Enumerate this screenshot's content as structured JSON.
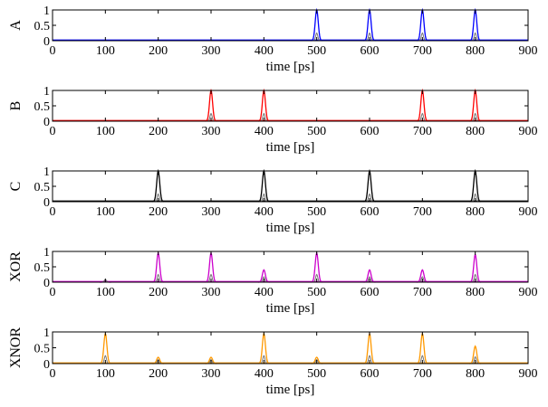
{
  "chart_data": [
    {
      "type": "line",
      "ylabel": "A",
      "xlabel": "time [ps]",
      "xlim": [
        0,
        900
      ],
      "ylim": [
        0,
        1
      ],
      "xticks": [
        0,
        100,
        200,
        300,
        400,
        500,
        600,
        700,
        800,
        900
      ],
      "yticks": [
        0,
        0.5,
        1
      ],
      "grid": false,
      "color": "#0000ff",
      "series": [
        {
          "x": [
            500,
            600,
            700,
            800
          ],
          "values": [
            1,
            1,
            1,
            1
          ]
        }
      ]
    },
    {
      "type": "line",
      "ylabel": "B",
      "xlabel": "time [ps]",
      "xlim": [
        0,
        900
      ],
      "ylim": [
        0,
        1
      ],
      "xticks": [
        0,
        100,
        200,
        300,
        400,
        500,
        600,
        700,
        800,
        900
      ],
      "yticks": [
        0,
        0.5,
        1
      ],
      "grid": false,
      "color": "#ff0000",
      "series": [
        {
          "x": [
            300,
            400,
            700,
            800
          ],
          "values": [
            1,
            1,
            1,
            1
          ]
        }
      ]
    },
    {
      "type": "line",
      "ylabel": "C",
      "xlabel": "time [ps]",
      "xlim": [
        0,
        900
      ],
      "ylim": [
        0,
        1
      ],
      "xticks": [
        0,
        100,
        200,
        300,
        400,
        500,
        600,
        700,
        800,
        900
      ],
      "yticks": [
        0,
        0.5,
        1
      ],
      "grid": false,
      "color": "#000000",
      "series": [
        {
          "x": [
            200,
            400,
            600,
            800
          ],
          "values": [
            1,
            1,
            1,
            1
          ]
        }
      ]
    },
    {
      "type": "line",
      "ylabel": "XOR",
      "xlabel": "time [ps]",
      "xlim": [
        0,
        900
      ],
      "ylim": [
        0,
        1
      ],
      "xticks": [
        0,
        100,
        200,
        300,
        400,
        500,
        600,
        700,
        800,
        900
      ],
      "yticks": [
        0,
        0.5,
        1
      ],
      "grid": false,
      "color": "#cc00cc",
      "series": [
        {
          "x": [
            100,
            200,
            300,
            400,
            500,
            600,
            700,
            800
          ],
          "values": [
            0.05,
            0.95,
            0.95,
            0.4,
            0.95,
            0.4,
            0.4,
            0.9
          ]
        }
      ]
    },
    {
      "type": "line",
      "ylabel": "XNOR",
      "xlabel": "time [ps]",
      "xlim": [
        0,
        900
      ],
      "ylim": [
        0,
        1
      ],
      "xticks": [
        0,
        100,
        200,
        300,
        400,
        500,
        600,
        700,
        800,
        900
      ],
      "yticks": [
        0,
        0.5,
        1
      ],
      "grid": false,
      "color": "#ff9900",
      "series": [
        {
          "x": [
            100,
            200,
            300,
            400,
            500,
            600,
            700,
            800
          ],
          "values": [
            0.95,
            0.2,
            0.2,
            0.95,
            0.2,
            0.95,
            0.95,
            0.55
          ]
        }
      ]
    }
  ]
}
